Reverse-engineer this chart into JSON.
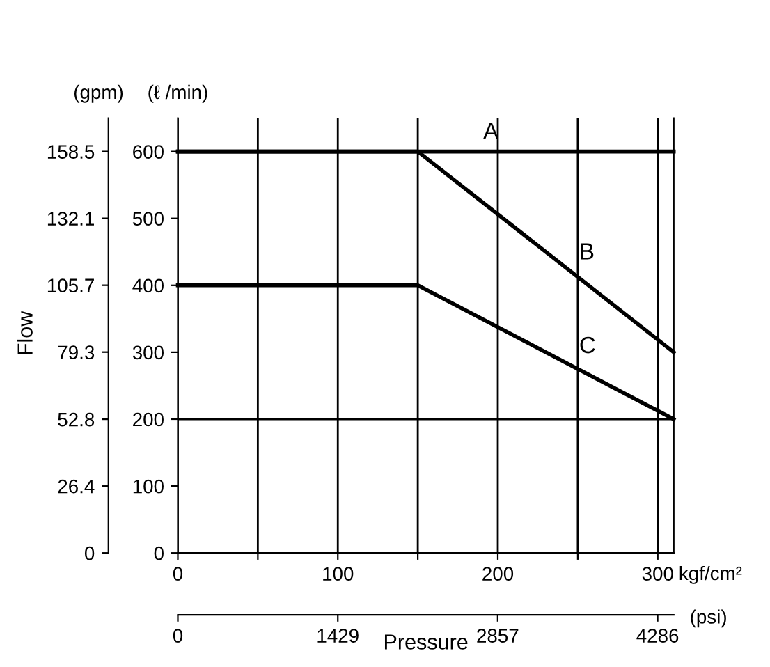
{
  "chart_data": {
    "type": "line",
    "ylabel": "(gpm)",
    "y2label": "(ℓ /min)",
    "xlabel": "kgf/cm²",
    "x2label": "(psi)",
    "annotations": [
      "Flow",
      "Pressure"
    ],
    "xlim": [
      0,
      310
    ],
    "xticks": [
      0,
      {
        "value": 50,
        "label": null
      },
      100,
      {
        "value": 150,
        "label": null
      },
      200,
      {
        "value": 250,
        "label": null
      },
      300
    ],
    "x2lim": [
      0,
      4430
    ],
    "x2ticks": [
      0,
      1429,
      2857,
      4286
    ],
    "ylim": [
      0,
      171.7
    ],
    "yticks": [
      0,
      26.4,
      52.8,
      79.3,
      105.7,
      132.1,
      158.5
    ],
    "y2lim": [
      0,
      650
    ],
    "y2ticks": [
      0,
      100,
      200,
      300,
      400,
      500,
      600
    ],
    "grid": "x",
    "marker": "none",
    "line_style": "solid",
    "legend": false,
    "ref_lines": [
      {
        "axis": "y2",
        "value": 200
      }
    ],
    "series": [
      {
        "name": "A",
        "color": "#000000",
        "axis": "y2",
        "x": [
          0,
          310
        ],
        "values": [
          600,
          600
        ]
      },
      {
        "name": "B",
        "color": "#000000",
        "axis": "y2",
        "x": [
          0,
          150,
          310
        ],
        "values": [
          600,
          600,
          300
        ]
      },
      {
        "name": "C",
        "color": "#000000",
        "axis": "y2",
        "x": [
          0,
          150,
          310
        ],
        "values": [
          400,
          400,
          200
        ]
      }
    ]
  }
}
